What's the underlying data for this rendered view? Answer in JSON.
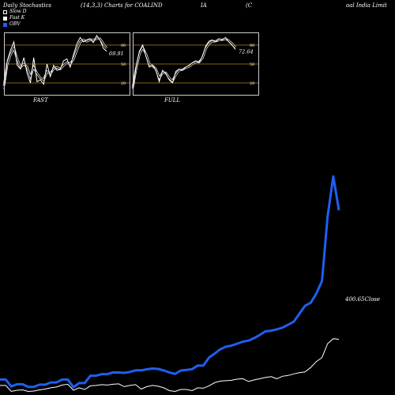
{
  "header": {
    "title": "Daily Stochastics",
    "params": "(14,3,3) Charts for COALIND",
    "part_ia": "IA",
    "part_c": "(C",
    "company": "oal India  Limit"
  },
  "legend": [
    {
      "label": "Slow  D",
      "color": "#000000"
    },
    {
      "label": "Fast K",
      "color": "#ffffff"
    },
    {
      "label": "OBV",
      "color": "#1f5ff0"
    }
  ],
  "colors": {
    "obv": "#1f5ff0",
    "close": "#ffffff",
    "band": "#b8860b"
  },
  "chart_data": [
    {
      "type": "line",
      "title": "FAST",
      "levels": [
        80,
        50,
        20
      ],
      "ylim": [
        0,
        100
      ],
      "last_value_label": "69.91",
      "series": [
        {
          "values": [
            10,
            55,
            72,
            85,
            48,
            42,
            60,
            35,
            20,
            60,
            22,
            25,
            18,
            50,
            30,
            48,
            40,
            42,
            55,
            58,
            45,
            65,
            82,
            92,
            85,
            88,
            90,
            84,
            95,
            88,
            75,
            70
          ]
        },
        {
          "values": [
            15,
            50,
            65,
            75,
            58,
            45,
            50,
            45,
            30,
            45,
            35,
            28,
            25,
            38,
            35,
            42,
            45,
            42,
            48,
            52,
            50,
            58,
            72,
            85,
            88,
            86,
            88,
            88,
            90,
            90,
            82,
            75
          ]
        }
      ]
    },
    {
      "type": "line",
      "title": "FULL",
      "levels": [
        80,
        50,
        20
      ],
      "ylim": [
        0,
        100
      ],
      "last_value_label": "72.64",
      "series": [
        {
          "values": [
            10,
            45,
            70,
            80,
            62,
            45,
            48,
            40,
            22,
            40,
            35,
            25,
            20,
            38,
            42,
            40,
            45,
            48,
            52,
            55,
            52,
            62,
            78,
            86,
            88,
            85,
            90,
            88,
            92,
            85,
            80,
            73
          ]
        },
        {
          "values": [
            12,
            42,
            65,
            76,
            66,
            50,
            47,
            42,
            28,
            36,
            36,
            28,
            23,
            33,
            40,
            41,
            44,
            46,
            50,
            53,
            53,
            59,
            74,
            82,
            86,
            86,
            88,
            88,
            90,
            87,
            82,
            76
          ]
        }
      ]
    },
    {
      "type": "line",
      "last_value_label": "400.65",
      "close_label_suffix": "Close",
      "series": [
        {
          "values": [
            410,
            410,
            375,
            386,
            386,
            373,
            373,
            384,
            384,
            395,
            395,
            410,
            410,
            371,
            392,
            392,
            429,
            429,
            437,
            437,
            445,
            445,
            443,
            448,
            456,
            456,
            461,
            465,
            463,
            455,
            445,
            438,
            455,
            458,
            462,
            480,
            480,
            520,
            540,
            562,
            575,
            580,
            590,
            600,
            605,
            618,
            634,
            652,
            655,
            662,
            670,
            685,
            700,
            740,
            780,
            795,
            842,
            905,
            1230,
            1430,
            1260
          ]
        },
        {
          "values": [
            380,
            380,
            350,
            356,
            358,
            350,
            352,
            358,
            362,
            368,
            372,
            382,
            386,
            356,
            368,
            360,
            378,
            380,
            384,
            382,
            386,
            388,
            374,
            380,
            384,
            362,
            374,
            380,
            376,
            368,
            354,
            350,
            360,
            360,
            354,
            368,
            366,
            378,
            394,
            402,
            404,
            406,
            412,
            414,
            400,
            408,
            414,
            420,
            424,
            414,
            426,
            430,
            438,
            444,
            448,
            470,
            500,
            520,
            590,
            615,
            612
          ]
        }
      ]
    }
  ]
}
